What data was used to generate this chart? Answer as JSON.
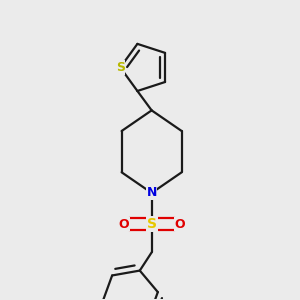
{
  "background_color": "#ebebeb",
  "bond_color": "#1a1a1a",
  "bond_width": 1.6,
  "atom_colors": {
    "S_thiophene": "#b8b800",
    "S_sulfonyl": "#e6c800",
    "N": "#0000e0",
    "O": "#e00000"
  },
  "figsize": [
    3.0,
    3.0
  ],
  "dpi": 100,
  "xlim": [
    0.15,
    0.85
  ],
  "ylim": [
    0.05,
    0.95
  ]
}
